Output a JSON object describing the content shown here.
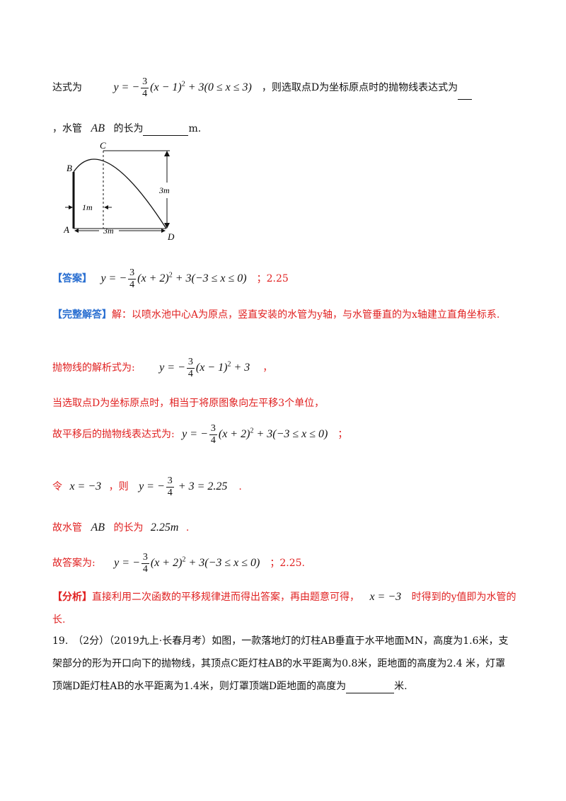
{
  "q18": {
    "line1_prefix": "达式为",
    "line1_formula": {
      "lhs": "y = −",
      "num": "3",
      "den": "4",
      "rest": "(x − 1)",
      "exp": "2",
      "tail": " + 3(0 ≤ x ≤ 3)"
    },
    "line1_suffix": "，则选取点D为坐标原点时的抛物线表达式为",
    "line2_prefix": "，水管",
    "line2_var": "AB",
    "line2_mid": "的长为",
    "line2_suffix": "m.",
    "figure": {
      "label_c": "C",
      "label_b": "B",
      "label_a": "A",
      "label_d": "D",
      "label_height": "3m",
      "label_1m": "1m",
      "label_3m": "3m"
    }
  },
  "answer": {
    "tag": "【答案】",
    "formula": {
      "lhs": "y = −",
      "num": "3",
      "den": "4",
      "rest": "(x + 2)",
      "exp": "2",
      "tail": " + 3(−3 ≤ x ≤ 0)"
    },
    "suffix": "；2.25"
  },
  "solution": {
    "tag": "【完整解答】",
    "intro": "解：以喷水池中心A为原点，竖直安装的水管为y轴，与水管垂直的为x轴建立直角坐标系.",
    "parabola_prefix": "抛物线的解析式为:",
    "parabola_formula": {
      "lhs": "y = −",
      "num": "3",
      "den": "4",
      "rest": "(x − 1)",
      "exp": "2",
      "tail": " + 3"
    },
    "parabola_suffix": "，",
    "shift_text": "当选取点D为坐标原点时，相当于将原图象向左平移3个单位，",
    "shifted_prefix": "故平移后的抛物线表达式为:",
    "shifted_formula": {
      "lhs": "y = −",
      "num": "3",
      "den": "4",
      "rest": "(x + 2)",
      "exp": "2",
      "tail": " + 3(−3 ≤ x ≤ 0)"
    },
    "shifted_suffix": "；",
    "let_prefix": "令",
    "let_formula": "x = −3",
    "let_mid": "，则",
    "let_result": {
      "lhs": "y = −",
      "num": "3",
      "den": "4",
      "tail": " + 3 = 2.25"
    },
    "let_suffix": ".",
    "ab_prefix": "故水管",
    "ab_var": "AB",
    "ab_mid": "的长为",
    "ab_value": "2.25m",
    "ab_suffix": ".",
    "final_prefix": "故答案为:",
    "final_formula": {
      "lhs": "y = −",
      "num": "3",
      "den": "4",
      "rest": "(x + 2)",
      "exp": "2",
      "tail": " + 3(−3 ≤ x ≤ 0)"
    },
    "final_suffix": "；2.25."
  },
  "analysis": {
    "tag": "【分析】",
    "text1": "直接利用二次函数的平移规律进而得出答案，再由题意可得，",
    "formula": "x = −3",
    "text2": "时得到的y值即为水管的",
    "text3": "长."
  },
  "q19": {
    "line1": "19.　（2分）（2019九上·长春月考）如图，一款落地灯的灯柱AB垂直于水平地面MN，高度为1.6米，支",
    "line2": "架部分的形为开口向下的抛物线，其顶点C距灯柱AB的水平距离为0.8米，距地面的高度为2.4 米，灯罩",
    "line3_prefix": "顶端D距灯柱AB的水平距离为1.4米，则灯罩顶端D距地面的高度为",
    "line3_suffix": "米."
  }
}
